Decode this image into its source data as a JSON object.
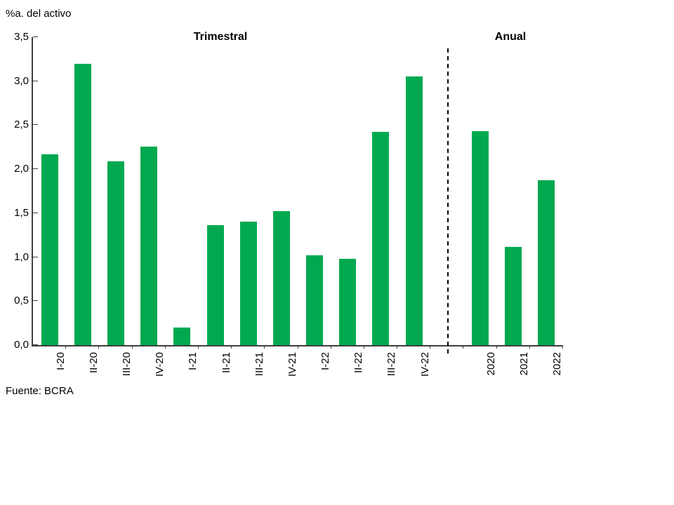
{
  "chart_data": {
    "type": "bar",
    "title": "%a. del activo",
    "source": "Fuente: BCRA",
    "bar_color": "#00a94f",
    "axis_color": "#3f3f3f",
    "ylim": [
      0,
      3.5
    ],
    "ytick_step": 0.5,
    "ytick_labels": [
      "0,0",
      "0,5",
      "1,0",
      "1,5",
      "2,0",
      "2,5",
      "3,0",
      "3,5"
    ],
    "grid": "off",
    "legend": "none",
    "separator": "dashed-vertical-line-between-sections",
    "sections": [
      {
        "label": "Trimestral",
        "categories": [
          "I-20",
          "II-20",
          "III-20",
          "IV-20",
          "I-21",
          "II-21",
          "III-21",
          "IV-21",
          "I-22",
          "II-22",
          "III-22",
          "IV-22"
        ],
        "values": [
          2.17,
          3.2,
          2.09,
          2.26,
          0.2,
          1.36,
          1.4,
          1.52,
          1.02,
          0.98,
          2.42,
          3.05
        ]
      },
      {
        "label": "Anual",
        "categories": [
          "2020",
          "2021",
          "2022"
        ],
        "values": [
          2.43,
          1.12,
          1.87
        ]
      }
    ]
  }
}
